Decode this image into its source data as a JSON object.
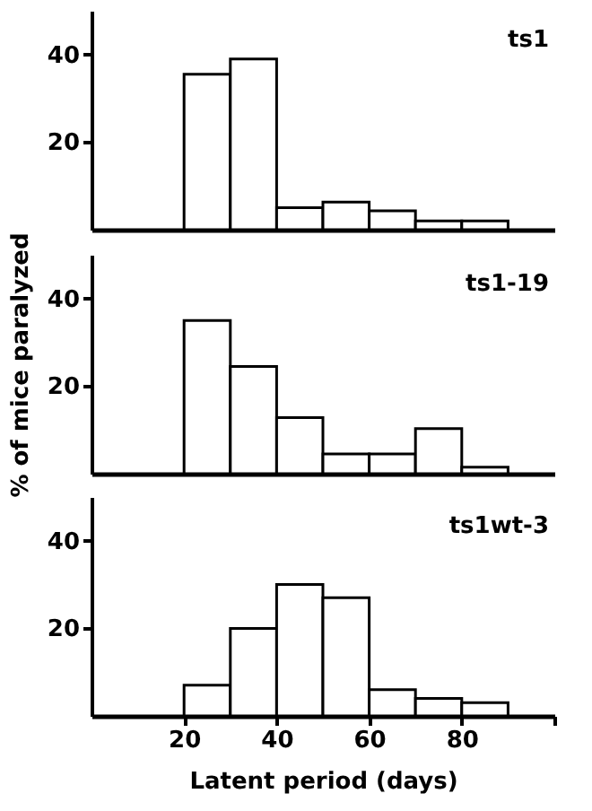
{
  "chart_data": [
    {
      "type": "histogram",
      "title": "ts1",
      "bins": [
        20,
        30,
        40,
        50,
        60,
        70,
        80,
        90
      ],
      "values": [
        35.5,
        39,
        5,
        6.3,
        4.3,
        2,
        2
      ],
      "color": "#000000",
      "xlim": [
        0,
        100
      ],
      "ylim": [
        0,
        50
      ],
      "yticks": [
        20,
        40
      ],
      "tick_labels": "y"
    },
    {
      "type": "histogram",
      "title": "ts1-19",
      "bins": [
        20,
        30,
        40,
        50,
        60,
        70,
        80,
        90
      ],
      "values": [
        35,
        24.5,
        12.8,
        4.5,
        4.5,
        10.3,
        1.5
      ],
      "color": "#000000",
      "ylabel": "% of mice paralyzed",
      "xlim": [
        0,
        100
      ],
      "ylim": [
        0,
        50
      ],
      "yticks": [
        20,
        40
      ],
      "tick_labels": "y"
    },
    {
      "type": "histogram",
      "title": "ts1wt-3",
      "bins": [
        20,
        30,
        40,
        50,
        60,
        70,
        80,
        90
      ],
      "values": [
        7,
        20,
        30,
        27,
        6,
        4,
        3
      ],
      "color": "#000000",
      "xlabel": "Latent period (days)",
      "xlim": [
        0,
        100
      ],
      "ylim": [
        0,
        50
      ],
      "xticks": [
        20,
        40,
        60,
        80,
        {
          "value": 100,
          "label": null
        }
      ],
      "yticks": [
        20,
        40
      ]
    }
  ]
}
